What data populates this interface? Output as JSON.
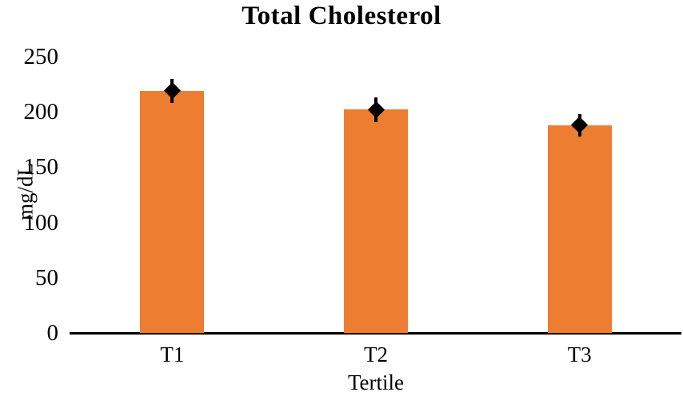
{
  "chart_data": {
    "type": "bar",
    "title": "Total Cholesterol",
    "xlabel": "Tertile",
    "ylabel": "mg/dL",
    "categories": [
      "T1",
      "T2",
      "T3"
    ],
    "values": [
      219,
      202,
      188
    ],
    "error_bars": {
      "marker": "diamond",
      "plus_minus": [
        11,
        11,
        10
      ]
    },
    "yticks": [
      0,
      50,
      100,
      150,
      200,
      250
    ],
    "ylim": [
      0,
      250
    ],
    "grid": false,
    "legend": false,
    "bar_color": "#ED7D31",
    "error_color": "#000000",
    "axis_line_color": "#000000",
    "text_color": "#000000",
    "background_color": "#FFFFFF"
  }
}
